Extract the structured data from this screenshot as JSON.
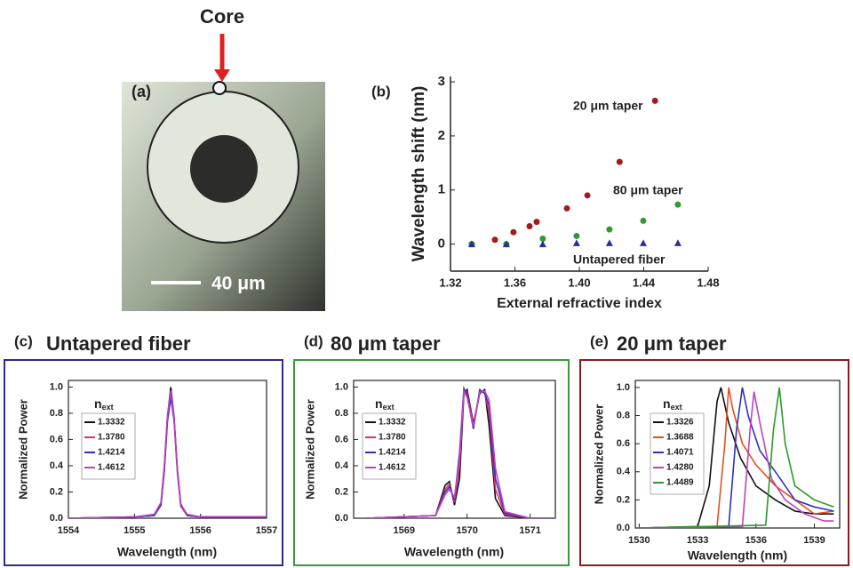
{
  "panel_a": {
    "label": "(a)",
    "pointer": "Core",
    "scale_bar": "40 μm"
  },
  "chart_data": [
    {
      "type": "scatter",
      "label": "(b)",
      "x_label": "External refractive index",
      "y_label": "Wavelength shift (nm)",
      "xlim": [
        1.32,
        1.48
      ],
      "xticks": [
        1.32,
        1.36,
        {
          "value": 1.4,
          "label": "1.40"
        },
        1.44,
        1.48
      ],
      "ylim": [
        -0.5,
        3.1
      ],
      "yticks": [
        0,
        1,
        2,
        3
      ],
      "series": [
        {
          "name": "20 μm taper",
          "color": "#a01c1c",
          "marker": "circle",
          "x": [
            1.3332,
            1.3476,
            1.3591,
            1.3691,
            1.3735,
            1.3923,
            1.405,
            1.425,
            1.447
          ],
          "values": [
            0,
            0.08,
            0.22,
            0.33,
            0.41,
            0.66,
            0.9,
            1.52,
            2.65
          ]
        },
        {
          "name": "80 μm taper",
          "color": "#2f9a2f",
          "marker": "circle",
          "x": [
            1.3332,
            1.3547,
            1.3773,
            1.3983,
            1.4187,
            1.4397,
            1.4612
          ],
          "values": [
            0,
            0,
            0.1,
            0.15,
            0.27,
            0.43,
            0.73
          ]
        },
        {
          "name": "Untapered fiber",
          "color": "#2b2b9a",
          "marker": "triangle",
          "x": [
            1.3332,
            1.3547,
            1.3773,
            1.3983,
            1.4187,
            1.4397,
            1.4612
          ],
          "values": [
            0,
            0,
            0,
            0.02,
            0.02,
            0.02,
            0.02
          ]
        }
      ]
    },
    {
      "type": "line",
      "label": "(c)",
      "title": "Untapered fiber",
      "title_color": "#2b2b8c",
      "x_label": "Wavelength (nm)",
      "y_label": "Normalized Power",
      "legend_title": [
        "n",
        "ext"
      ],
      "xlim": [
        1554,
        1557
      ],
      "xticks": [
        1554,
        1555,
        1556,
        1557
      ],
      "ylim": [
        0,
        1.05
      ],
      "yticks": [
        {
          "value": 0,
          "label": "0.0"
        },
        0.2,
        0.4,
        0.6,
        0.8,
        {
          "value": 1,
          "label": "1.0"
        }
      ],
      "x": [
        1554,
        1555,
        1555.3,
        1555.4,
        1555.45,
        1555.5,
        1555.55,
        1555.6,
        1555.65,
        1555.7,
        1555.8,
        1556,
        1557
      ],
      "series": [
        {
          "name": "1.3332",
          "color": "#111111",
          "values": [
            0,
            0.01,
            0.02,
            0.1,
            0.36,
            0.77,
            1.0,
            0.77,
            0.36,
            0.1,
            0.02,
            0.01,
            0.01
          ]
        },
        {
          "name": "1.3780",
          "color": "#e0306a",
          "values": [
            0,
            0.01,
            0.02,
            0.11,
            0.38,
            0.78,
            0.95,
            0.74,
            0.34,
            0.09,
            0.02,
            0.01,
            0.01
          ]
        },
        {
          "name": "1.4214",
          "color": "#3030c0",
          "values": [
            0,
            0.01,
            0.02,
            0.1,
            0.35,
            0.74,
            0.92,
            0.75,
            0.37,
            0.11,
            0.02,
            0.01,
            0.01
          ]
        },
        {
          "name": "1.4612",
          "color": "#c040c0",
          "values": [
            0,
            0.01,
            0.03,
            0.12,
            0.39,
            0.79,
            0.97,
            0.76,
            0.35,
            0.1,
            0.03,
            0.01,
            0.01
          ]
        }
      ]
    },
    {
      "type": "line",
      "label": "(d)",
      "title": "80 μm taper",
      "title_color": "#3a9a3a",
      "x_label": "Wavelength (nm)",
      "y_label": "Normalized Power",
      "legend_title": [
        "n",
        "ext"
      ],
      "xlim": [
        1568.2,
        1571.4
      ],
      "xticks": [
        1569,
        1570,
        1571
      ],
      "ylim": [
        0,
        1.05
      ],
      "yticks": [
        {
          "value": 0,
          "label": "0.0"
        },
        0.2,
        0.4,
        0.6,
        0.8,
        {
          "value": 1,
          "label": "1.0"
        }
      ],
      "x": [
        1568.4,
        1569.5,
        1569.65,
        1569.72,
        1569.8,
        1569.88,
        1569.95,
        1570.0,
        1570.1,
        1570.2,
        1570.28,
        1570.35,
        1570.45,
        1570.6,
        1571,
        1571.4
      ],
      "series": [
        {
          "name": "1.3332",
          "color": "#111111",
          "values": [
            0,
            0.02,
            0.25,
            0.28,
            0.1,
            0.3,
            0.95,
            0.98,
            0.72,
            0.95,
            0.98,
            0.7,
            0.15,
            0.02,
            0,
            0
          ]
        },
        {
          "name": "1.3780",
          "color": "#e0306a",
          "values": [
            0,
            0.02,
            0.22,
            0.26,
            0.12,
            0.4,
            0.98,
            0.96,
            0.7,
            0.97,
            0.96,
            0.8,
            0.22,
            0.03,
            0,
            0
          ]
        },
        {
          "name": "1.4214",
          "color": "#3030c0",
          "values": [
            0,
            0.02,
            0.2,
            0.24,
            0.14,
            0.5,
            0.99,
            0.94,
            0.68,
            0.98,
            0.95,
            0.86,
            0.3,
            0.04,
            0,
            0
          ]
        },
        {
          "name": "1.4612",
          "color": "#c040c0",
          "values": [
            0,
            0.02,
            0.18,
            0.22,
            0.16,
            0.45,
            0.97,
            0.92,
            0.7,
            0.96,
            0.97,
            0.9,
            0.38,
            0.05,
            0,
            0
          ]
        }
      ]
    },
    {
      "type": "line",
      "label": "(e)",
      "title": "20 μm taper",
      "title_color": "#8b1a1a",
      "x_label": "Wavelength (nm)",
      "y_label": "Normalized Power",
      "legend_title": [
        "n",
        "ext"
      ],
      "xlim": [
        1529.8,
        1540.3
      ],
      "xticks": [
        1530,
        1533,
        1536,
        1539
      ],
      "ylim": [
        0,
        1.05
      ],
      "yticks": [
        {
          "value": 0,
          "label": "0.0"
        },
        0.2,
        0.4,
        0.6,
        0.8,
        {
          "value": 1,
          "label": "1.0"
        }
      ],
      "series": [
        {
          "name": "1.3326",
          "color": "#111111",
          "x": [
            1530,
            1533,
            1533.6,
            1534.0,
            1534.2,
            1534.6,
            1535.2,
            1536,
            1537,
            1538,
            1539,
            1540
          ],
          "values": [
            0,
            0.01,
            0.3,
            0.9,
            1.0,
            0.75,
            0.5,
            0.3,
            0.2,
            0.12,
            0.1,
            0.1
          ]
        },
        {
          "name": "1.3688",
          "color": "#e05020",
          "x": [
            1530,
            1534,
            1534.4,
            1534.6,
            1534.8,
            1535.3,
            1536,
            1537,
            1538,
            1539,
            1540
          ],
          "values": [
            0,
            0.01,
            0.6,
            1.0,
            0.85,
            0.6,
            0.45,
            0.3,
            0.2,
            0.1,
            0.12
          ]
        },
        {
          "name": "1.4071",
          "color": "#3030c0",
          "x": [
            1530,
            1534.6,
            1535.0,
            1535.3,
            1535.6,
            1536.2,
            1537,
            1538,
            1539,
            1540
          ],
          "values": [
            0,
            0.01,
            0.7,
            1.0,
            0.8,
            0.55,
            0.4,
            0.2,
            0.15,
            0.12
          ]
        },
        {
          "name": "1.4280",
          "color": "#c040c0",
          "x": [
            1530,
            1535.3,
            1535.7,
            1535.9,
            1536.2,
            1536.8,
            1537.5,
            1538.5,
            1539.5,
            1540
          ],
          "values": [
            0,
            0.01,
            0.7,
            0.97,
            0.75,
            0.35,
            0.2,
            0.1,
            0.05,
            0.05
          ]
        },
        {
          "name": "1.4489",
          "color": "#2a9a2a",
          "x": [
            1530,
            1536.5,
            1536.9,
            1537.2,
            1537.5,
            1538,
            1539,
            1540
          ],
          "values": [
            0,
            0.02,
            0.7,
            1.0,
            0.6,
            0.3,
            0.2,
            0.15
          ]
        }
      ]
    }
  ]
}
